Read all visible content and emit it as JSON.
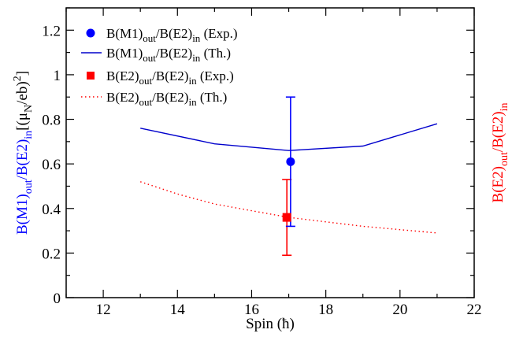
{
  "chart_data": {
    "type": "line",
    "title": "",
    "xlabel": "Spin (ħ)",
    "ylabel_left": {
      "blue_part": "B(M1)out/B(E2)in",
      "black_part": "[(μN/eb)2]"
    },
    "ylabel_right": "B(E2)out/B(E2)in",
    "xlim": [
      11,
      22
    ],
    "ylim": [
      0,
      1.3
    ],
    "x_ticks": [
      "12",
      "14",
      "16",
      "18",
      "20",
      "22"
    ],
    "y_ticks": [
      "0",
      "0.2",
      "0.4",
      "0.6",
      "0.8",
      "1",
      "1.2"
    ],
    "grid": false,
    "legend_position": "top-left",
    "series": [
      {
        "name": "B(M1)out/B(E2)in (Exp.)",
        "style": "marker-circle",
        "color": "#0000ff",
        "points": [
          {
            "x": 17.05,
            "y": 0.61,
            "yerr_low": 0.32,
            "yerr_high": 0.9
          }
        ]
      },
      {
        "name": "B(M1)out/B(E2)in (Th.)",
        "style": "solid-line",
        "color": "#0000cc",
        "x": [
          13,
          15,
          17,
          19,
          21
        ],
        "y": [
          0.76,
          0.69,
          0.66,
          0.68,
          0.78
        ]
      },
      {
        "name": "B(E2)out/B(E2)in (Exp.)",
        "style": "marker-square",
        "color": "#ff0000",
        "points": [
          {
            "x": 16.95,
            "y": 0.36,
            "yerr_low": 0.19,
            "yerr_high": 0.53
          }
        ]
      },
      {
        "name": "B(E2)out/B(E2)in (Th.)",
        "style": "dotted-line",
        "color": "#ff0000",
        "x": [
          13,
          14,
          15,
          16,
          17,
          18,
          19,
          20,
          21
        ],
        "y": [
          0.52,
          0.465,
          0.42,
          0.39,
          0.36,
          0.34,
          0.32,
          0.305,
          0.29
        ]
      }
    ],
    "legend": [
      {
        "base1": "B(M1)",
        "sub1": "out",
        "base2": "/B(E2)",
        "sub2": "in",
        "tail": " (Exp.)"
      },
      {
        "base1": "B(M1)",
        "sub1": "out",
        "base2": "/B(E2)",
        "sub2": "in",
        "tail": " (Th.)"
      },
      {
        "base1": "B(E2)",
        "sub1": "out",
        "base2": "/B(E2)",
        "sub2": "in",
        "tail": " (Exp.)"
      },
      {
        "base1": "B(E2)",
        "sub1": "out",
        "base2": "/B(E2)",
        "sub2": "in",
        "tail": " (Th.)"
      }
    ],
    "axis_text": {
      "x_title": "Spin (ħ)",
      "left_blue": {
        "t1": "B(M1)",
        "s1": "out",
        "t2": "/B(E2)",
        "s2": "in"
      },
      "left_black": {
        "t1": "[(μ",
        "s1": "N",
        "t2": "/eb)",
        "sup": "2",
        "t3": "]"
      },
      "right": {
        "t1": "B(E2)",
        "s1": "out",
        "t2": "/B(E2)",
        "s2": "in"
      }
    },
    "colors": {
      "m1_exp": "#0000ff",
      "m1_th": "#0000cc",
      "e2": "#ff0000",
      "axis": "#000000"
    }
  }
}
